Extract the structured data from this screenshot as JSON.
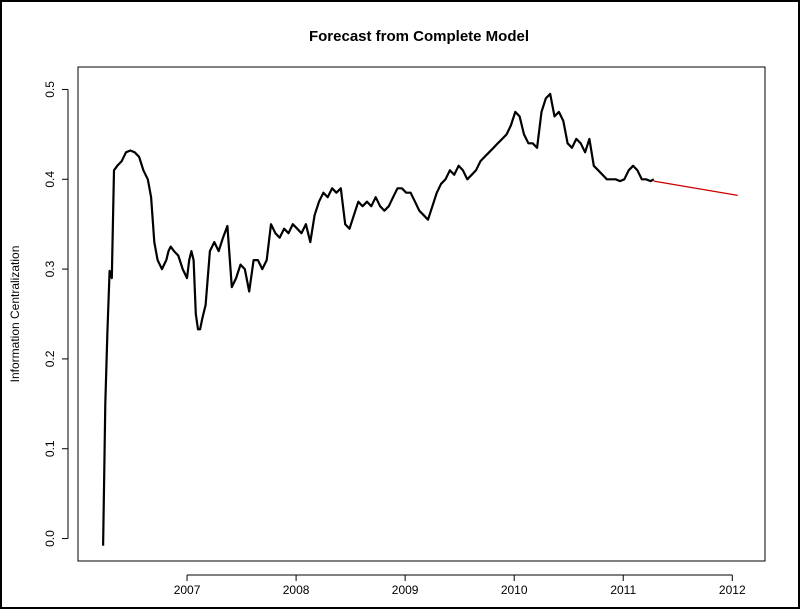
{
  "chart_data": {
    "type": "line",
    "title": "Forecast from Complete Model",
    "xlabel": "",
    "ylabel": "Information Centralization",
    "xlim": [
      2006.0,
      2012.3
    ],
    "ylim": [
      -0.025,
      0.525
    ],
    "x_ticks": [
      2007,
      2008,
      2009,
      2010,
      2011,
      2012
    ],
    "x_tick_labels": [
      "2007",
      "2008",
      "2009",
      "2010",
      "2011",
      "2012"
    ],
    "y_ticks": [
      0.0,
      0.1,
      0.2,
      0.3,
      0.4,
      0.5
    ],
    "y_tick_labels": [
      "0.0",
      "0.1",
      "0.2",
      "0.3",
      "0.4",
      "0.5"
    ],
    "grid": false,
    "series": [
      {
        "color": "#000000",
        "x": [
          2006.23,
          2006.24,
          2006.25,
          2006.27,
          2006.29,
          2006.31,
          2006.33,
          2006.36,
          2006.4,
          2006.44,
          2006.48,
          2006.52,
          2006.56,
          2006.6,
          2006.64,
          2006.67,
          2006.7,
          2006.73,
          2006.75,
          2006.77,
          2006.79,
          2006.81,
          2006.83,
          2006.85,
          2006.88,
          2006.92,
          2006.96,
          2007.0,
          2007.02,
          2007.04,
          2007.06,
          2007.08,
          2007.1,
          2007.12,
          2007.14,
          2007.17,
          2007.21,
          2007.25,
          2007.29,
          2007.33,
          2007.37,
          2007.41,
          2007.45,
          2007.49,
          2007.53,
          2007.57,
          2007.61,
          2007.65,
          2007.69,
          2007.73,
          2007.77,
          2007.81,
          2007.85,
          2007.89,
          2007.93,
          2007.97,
          2008.01,
          2008.05,
          2008.09,
          2008.13,
          2008.17,
          2008.21,
          2008.25,
          2008.29,
          2008.33,
          2008.37,
          2008.41,
          2008.45,
          2008.49,
          2008.53,
          2008.57,
          2008.61,
          2008.65,
          2008.69,
          2008.73,
          2008.77,
          2008.81,
          2008.85,
          2008.89,
          2008.93,
          2008.97,
          2009.01,
          2009.05,
          2009.09,
          2009.13,
          2009.17,
          2009.21,
          2009.25,
          2009.29,
          2009.33,
          2009.37,
          2009.41,
          2009.45,
          2009.49,
          2009.53,
          2009.57,
          2009.61,
          2009.65,
          2009.69,
          2009.73,
          2009.77,
          2009.81,
          2009.85,
          2009.89,
          2009.93,
          2009.97,
          2010.01,
          2010.05,
          2010.09,
          2010.13,
          2010.17,
          2010.21,
          2010.25,
          2010.29,
          2010.33,
          2010.37,
          2010.41,
          2010.45,
          2010.49,
          2010.53,
          2010.57,
          2010.61,
          2010.65,
          2010.69,
          2010.73,
          2010.77,
          2010.81,
          2010.85,
          2010.89,
          2010.93,
          2010.97,
          2011.01,
          2011.05,
          2011.09,
          2011.13,
          2011.17,
          2011.21,
          2011.25,
          2011.28
        ],
        "y": [
          -0.008,
          0.07,
          0.15,
          0.23,
          0.298,
          0.29,
          0.41,
          0.415,
          0.42,
          0.43,
          0.432,
          0.43,
          0.425,
          0.41,
          0.4,
          0.38,
          0.33,
          0.31,
          0.305,
          0.3,
          0.305,
          0.31,
          0.32,
          0.325,
          0.32,
          0.315,
          0.3,
          0.29,
          0.31,
          0.32,
          0.31,
          0.25,
          0.233,
          0.233,
          0.245,
          0.26,
          0.32,
          0.33,
          0.32,
          0.335,
          0.348,
          0.28,
          0.29,
          0.305,
          0.3,
          0.275,
          0.31,
          0.31,
          0.3,
          0.31,
          0.35,
          0.34,
          0.335,
          0.345,
          0.34,
          0.35,
          0.345,
          0.34,
          0.35,
          0.33,
          0.36,
          0.375,
          0.385,
          0.38,
          0.39,
          0.385,
          0.39,
          0.35,
          0.345,
          0.36,
          0.375,
          0.37,
          0.375,
          0.37,
          0.38,
          0.37,
          0.365,
          0.37,
          0.38,
          0.39,
          0.39,
          0.385,
          0.385,
          0.375,
          0.365,
          0.36,
          0.355,
          0.37,
          0.385,
          0.395,
          0.4,
          0.41,
          0.405,
          0.415,
          0.41,
          0.4,
          0.405,
          0.41,
          0.42,
          0.425,
          0.43,
          0.435,
          0.44,
          0.445,
          0.45,
          0.46,
          0.475,
          0.47,
          0.45,
          0.44,
          0.44,
          0.435,
          0.475,
          0.49,
          0.495,
          0.47,
          0.475,
          0.465,
          0.44,
          0.435,
          0.445,
          0.44,
          0.43,
          0.445,
          0.415,
          0.41,
          0.405,
          0.4,
          0.4,
          0.4,
          0.398,
          0.4,
          0.41,
          0.415,
          0.41,
          0.4,
          0.4,
          0.398,
          0.4
        ]
      },
      {
        "color": "#cc0000",
        "x": [
          2011.28,
          2012.05
        ],
        "y": [
          0.398,
          0.382
        ]
      }
    ]
  }
}
